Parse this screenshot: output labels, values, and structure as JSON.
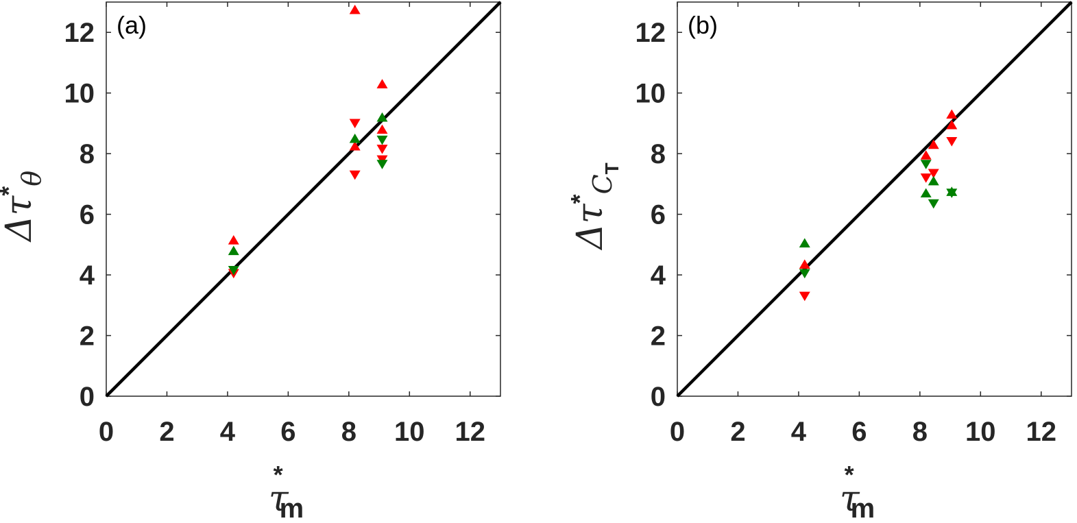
{
  "chart_data": [
    {
      "type": "scatter",
      "panel_label": "(a)",
      "xlabel": {
        "base": "τ",
        "sup": "*",
        "sub": "m"
      },
      "ylabel": {
        "base": "Δτ",
        "sup": "*",
        "sub": "θ"
      },
      "xlim": [
        0,
        13
      ],
      "ylim": [
        0,
        13
      ],
      "xticks": [
        0,
        2,
        4,
        6,
        8,
        10,
        12
      ],
      "yticks": [
        0,
        2,
        4,
        6,
        8,
        10,
        12
      ],
      "diagonal": true,
      "box": true,
      "series": [
        {
          "color": "#ff0000",
          "marker": "^",
          "x": [
            4.2,
            8.2,
            8.2,
            9.1,
            9.1
          ],
          "values": [
            5.15,
            12.75,
            8.25,
            10.3,
            8.8
          ]
        },
        {
          "color": "#ff0000",
          "marker": "v",
          "x": [
            4.2,
            8.2,
            8.2,
            9.1,
            9.1
          ],
          "values": [
            4.05,
            9.0,
            7.3,
            8.15,
            7.8
          ]
        },
        {
          "color": "#008000",
          "marker": "^",
          "x": [
            4.2,
            8.2,
            9.1
          ],
          "values": [
            4.8,
            8.5,
            9.2
          ]
        },
        {
          "color": "#008000",
          "marker": "v",
          "x": [
            4.2,
            9.1,
            9.1
          ],
          "values": [
            4.15,
            8.45,
            7.65
          ]
        }
      ]
    },
    {
      "type": "scatter",
      "panel_label": "(b)",
      "xlabel": {
        "base": "τ",
        "sup": "*",
        "sub": "m"
      },
      "ylabel": {
        "base": "Δτ",
        "sup": "*",
        "sub": "C",
        "subsub": "T"
      },
      "xlim": [
        0,
        13
      ],
      "ylim": [
        0,
        13
      ],
      "xticks": [
        0,
        2,
        4,
        6,
        8,
        10,
        12
      ],
      "yticks": [
        0,
        2,
        4,
        6,
        8,
        10,
        12
      ],
      "diagonal": true,
      "box": true,
      "series": [
        {
          "color": "#ff0000",
          "marker": "^",
          "x": [
            4.2,
            8.2,
            8.45,
            9.05,
            9.05
          ],
          "values": [
            4.35,
            7.95,
            8.3,
            9.3,
            8.95
          ]
        },
        {
          "color": "#ff0000",
          "marker": "v",
          "x": [
            4.2,
            8.2,
            8.45,
            9.05
          ],
          "values": [
            3.3,
            7.2,
            7.35,
            8.4
          ]
        },
        {
          "color": "#008000",
          "marker": "^",
          "x": [
            4.2,
            8.2,
            8.45,
            9.05
          ],
          "values": [
            5.05,
            6.7,
            7.1,
            6.75
          ]
        },
        {
          "color": "#008000",
          "marker": "v",
          "x": [
            4.2,
            8.2,
            8.45,
            9.05
          ],
          "values": [
            4.05,
            7.65,
            6.35,
            6.7
          ]
        }
      ]
    }
  ]
}
